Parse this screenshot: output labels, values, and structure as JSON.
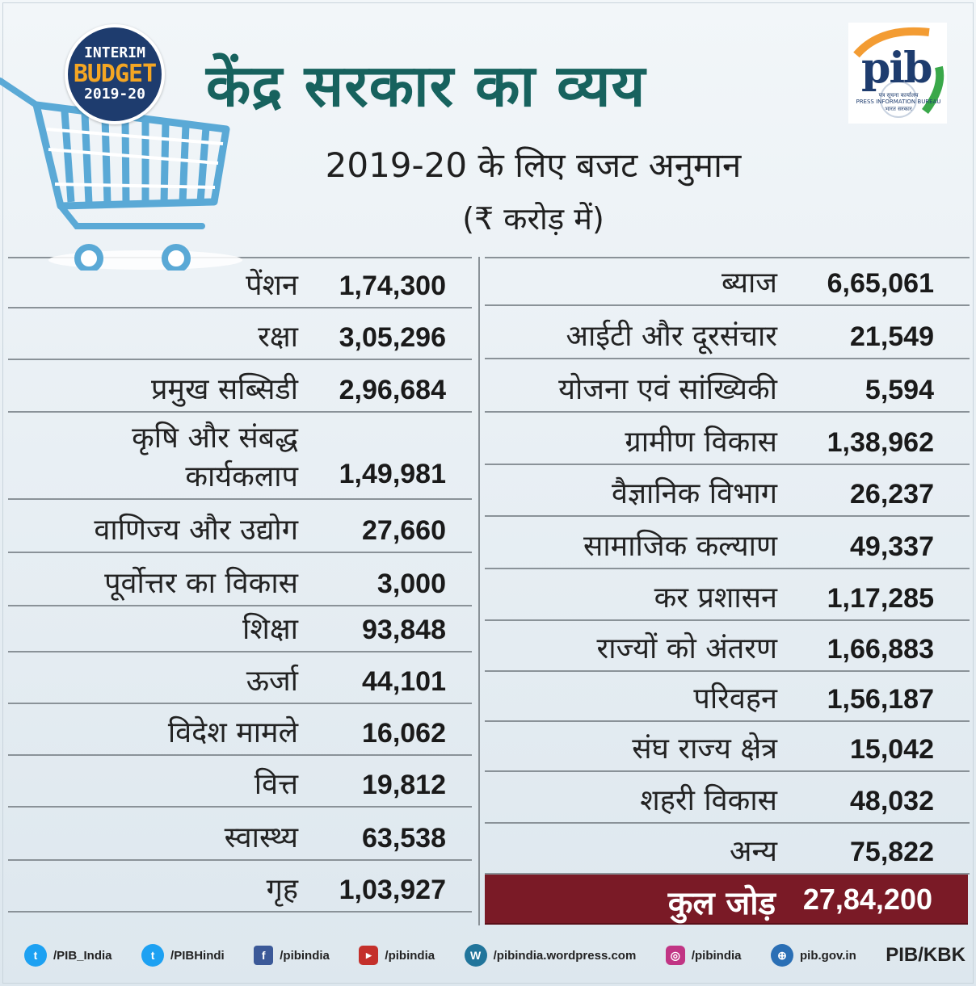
{
  "badge": {
    "line1": "INTERIM",
    "line2": "BUDGET",
    "line3": "2019-20"
  },
  "title": "केंद्र सरकार का व्यय",
  "subtitle": "2019-20 के लिए बजट अनुमान",
  "unit": "(₹ करोड़ में)",
  "logo": {
    "text": "pib",
    "sub1": "पत्र सूचना कार्यालय",
    "sub2": "PRESS INFORMATION BUREAU",
    "sub3": "भारत सरकार"
  },
  "left_rows": [
    {
      "label": "पेंशन",
      "value": "1,74,300"
    },
    {
      "label": "रक्षा",
      "value": "3,05,296"
    },
    {
      "label": "प्रमुख सब्सिडी",
      "value": "2,96,684"
    },
    {
      "label": "कृषि और संबद्ध",
      "label2": "कार्यकलाप",
      "value": "1,49,981"
    },
    {
      "label": "वाणिज्य और उद्योग",
      "value": "27,660"
    },
    {
      "label": "पूर्वोत्तर का विकास",
      "value": "3,000"
    },
    {
      "label": "शिक्षा",
      "value": "93,848"
    },
    {
      "label": "ऊर्जा",
      "value": "44,101"
    },
    {
      "label": "विदेश मामले",
      "value": "16,062"
    },
    {
      "label": "वित्त",
      "value": "19,812"
    },
    {
      "label": "स्वास्थ्य",
      "value": "63,538"
    },
    {
      "label": "गृह",
      "value": "1,03,927"
    }
  ],
  "right_rows": [
    {
      "label": "ब्याज",
      "value": "6,65,061"
    },
    {
      "label": "आईटी और दूरसंचार",
      "value": "21,549"
    },
    {
      "label": "योजना एवं सांख्यिकी",
      "value": "5,594"
    },
    {
      "label": "ग्रामीण विकास",
      "value": "1,38,962"
    },
    {
      "label": "वैज्ञानिक विभाग",
      "value": "26,237"
    },
    {
      "label": "सामाजिक कल्याण",
      "value": "49,337"
    },
    {
      "label": "कर प्रशासन",
      "value": "1,17,285"
    },
    {
      "label": "राज्यों को अंतरण",
      "value": "1,66,883"
    },
    {
      "label": "परिवहन",
      "value": "1,56,187"
    },
    {
      "label": "संघ राज्य क्षेत्र",
      "value": "15,042"
    },
    {
      "label": "शहरी विकास",
      "value": "48,032"
    },
    {
      "label": "अन्य",
      "value": "75,822"
    }
  ],
  "total": {
    "label": "कुल जोड़",
    "value": "27,84,200"
  },
  "footer": {
    "items": [
      {
        "icon": "twitter-icon",
        "text": "/PIB_India"
      },
      {
        "icon": "twitter-icon",
        "text": "/PIBHindi"
      },
      {
        "icon": "facebook-icon",
        "text": "/pibindia"
      },
      {
        "icon": "youtube-icon",
        "text": "/pibindia"
      },
      {
        "icon": "wordpress-icon",
        "text": "/pibindia.wordpress.com"
      },
      {
        "icon": "instagram-icon",
        "text": "/pibindia"
      },
      {
        "icon": "globe-icon",
        "text": "pib.gov.in"
      }
    ],
    "credit": "PIB/KBK"
  },
  "colors": {
    "title": "#17625e",
    "badge": "#1e3c6e",
    "badge_accent": "#f5a623",
    "total_bg": "#7a1a26",
    "cart": "#5aa9d6"
  }
}
